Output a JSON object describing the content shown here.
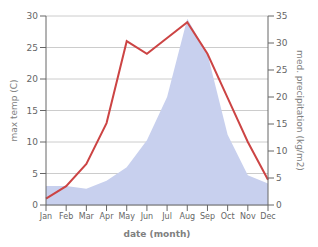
{
  "chart_data": {
    "type": "combo",
    "categories": [
      "Jan",
      "Feb",
      "Mar",
      "Apr",
      "May",
      "Jun",
      "Jul",
      "Aug",
      "Sep",
      "Oct",
      "Nov",
      "Dec"
    ],
    "xlabel": "date (month)",
    "ylabel": "max temp (C)",
    "y2label": "med. precipitation (kg/m2)",
    "ylim": [
      0,
      30
    ],
    "yticks": [
      0,
      5,
      10,
      15,
      20,
      25,
      30
    ],
    "y2lim": [
      0,
      35
    ],
    "y2ticks": [
      0,
      5,
      10,
      15,
      20,
      25,
      30,
      35
    ],
    "grid": true,
    "series": [
      {
        "type": "area",
        "axis": "y2",
        "color": "#c8d0ee",
        "values": [
          3.5,
          3.5,
          3.0,
          4.5,
          7.0,
          12.0,
          20.0,
          34.5,
          28.0,
          13.0,
          5.5,
          4.0
        ]
      },
      {
        "type": "line",
        "color": "#cc4444",
        "values": [
          1.0,
          3.0,
          6.5,
          13.0,
          26.0,
          24.0,
          26.5,
          29.0,
          24.0,
          17.0,
          10.0,
          4.0
        ]
      }
    ]
  }
}
